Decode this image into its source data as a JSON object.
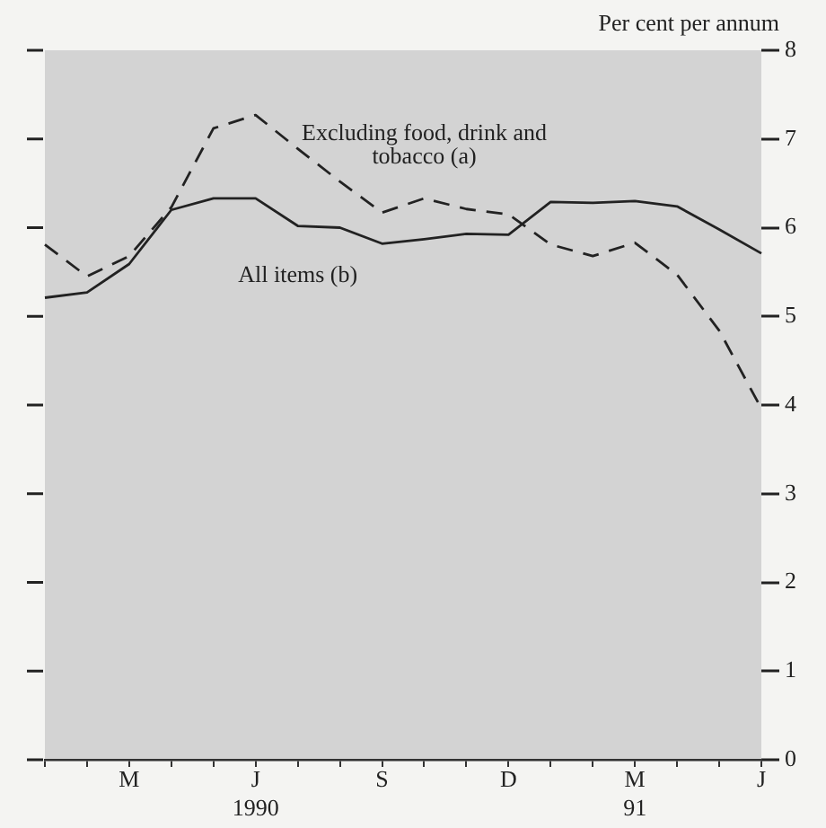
{
  "chart_data": {
    "type": "line",
    "ylabel": "Per cent per annum",
    "categories": [
      null,
      null,
      "M",
      null,
      null,
      "J\n1990",
      null,
      null,
      "S",
      null,
      null,
      "D",
      null,
      null,
      "M\n91",
      null,
      null,
      "J"
    ],
    "series": [
      {
        "name": "Excluding food, drink and tobacco (a)",
        "color": "#222222",
        "line_style": "dashed",
        "values": [
          5.81,
          5.45,
          5.68,
          6.23,
          7.12,
          7.27,
          6.89,
          6.52,
          6.17,
          6.33,
          6.21,
          6.15,
          5.81,
          5.68,
          5.83,
          5.47,
          4.84,
          3.96
        ]
      },
      {
        "name": "All items (b)",
        "color": "#222222",
        "line_style": "solid",
        "values": [
          5.21,
          5.27,
          5.59,
          6.2,
          6.33,
          6.33,
          6.02,
          6.0,
          5.82,
          5.87,
          5.93,
          5.92,
          6.29,
          6.28,
          6.3,
          6.24,
          5.98,
          5.71
        ]
      }
    ],
    "ylim": [
      0,
      8
    ],
    "yticks": [
      0,
      1,
      2,
      3,
      4,
      5,
      6,
      7,
      8
    ],
    "marker": "none",
    "grid": false,
    "legend": false
  }
}
